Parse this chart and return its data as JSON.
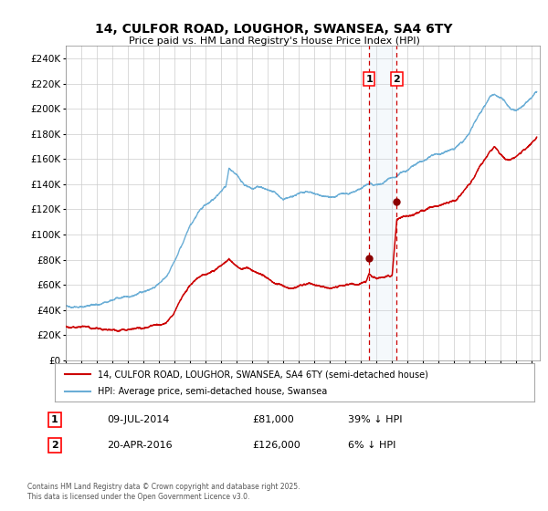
{
  "title": "14, CULFOR ROAD, LOUGHOR, SWANSEA, SA4 6TY",
  "subtitle": "Price paid vs. HM Land Registry's House Price Index (HPI)",
  "legend_line1": "14, CULFOR ROAD, LOUGHOR, SWANSEA, SA4 6TY (semi-detached house)",
  "legend_line2": "HPI: Average price, semi-detached house, Swansea",
  "transaction1_date": "09-JUL-2014",
  "transaction1_price": "£81,000",
  "transaction1_hpi": "39% ↓ HPI",
  "transaction2_date": "20-APR-2016",
  "transaction2_price": "£126,000",
  "transaction2_hpi": "6% ↓ HPI",
  "footnote": "Contains HM Land Registry data © Crown copyright and database right 2025.\nThis data is licensed under the Open Government Licence v3.0.",
  "hpi_color": "#6baed6",
  "price_color": "#cc0000",
  "marker_color": "#8b0000",
  "vline_color": "#cc0000",
  "shade_color": "#cce0f0",
  "grid_color": "#cccccc",
  "background_color": "#ffffff",
  "ylim": [
    0,
    250000
  ],
  "ytick_step": 20000,
  "xlim_start": 1995.0,
  "xlim_end": 2025.5,
  "transaction1_year": 2014.52,
  "transaction2_year": 2016.3,
  "transaction1_price_val": 81000,
  "transaction2_price_val": 126000,
  "hpi_anchors": [
    [
      1995.0,
      43000
    ],
    [
      1995.5,
      43500
    ],
    [
      1996.0,
      43800
    ],
    [
      1996.5,
      44200
    ],
    [
      1997.0,
      44500
    ],
    [
      1997.5,
      45500
    ],
    [
      1998.0,
      47000
    ],
    [
      1998.5,
      49000
    ],
    [
      1999.0,
      51000
    ],
    [
      1999.5,
      53000
    ],
    [
      2000.0,
      55000
    ],
    [
      2000.5,
      58000
    ],
    [
      2001.0,
      62000
    ],
    [
      2001.5,
      67000
    ],
    [
      2002.0,
      76000
    ],
    [
      2002.5,
      90000
    ],
    [
      2003.0,
      103000
    ],
    [
      2003.5,
      112000
    ],
    [
      2004.0,
      118000
    ],
    [
      2004.5,
      122000
    ],
    [
      2005.0,
      128000
    ],
    [
      2005.3,
      133000
    ],
    [
      2005.5,
      147000
    ],
    [
      2006.0,
      140000
    ],
    [
      2006.5,
      130000
    ],
    [
      2007.0,
      128000
    ],
    [
      2007.3,
      130000
    ],
    [
      2007.6,
      128000
    ],
    [
      2008.0,
      125000
    ],
    [
      2008.5,
      122000
    ],
    [
      2009.0,
      118000
    ],
    [
      2009.5,
      120000
    ],
    [
      2010.0,
      122000
    ],
    [
      2010.5,
      124000
    ],
    [
      2011.0,
      123000
    ],
    [
      2011.5,
      121000
    ],
    [
      2012.0,
      120000
    ],
    [
      2012.5,
      121000
    ],
    [
      2013.0,
      122000
    ],
    [
      2013.5,
      124000
    ],
    [
      2014.0,
      126000
    ],
    [
      2014.52,
      130000
    ],
    [
      2015.0,
      128000
    ],
    [
      2015.5,
      130000
    ],
    [
      2016.0,
      132000
    ],
    [
      2016.3,
      134000
    ],
    [
      2016.5,
      136000
    ],
    [
      2017.0,
      140000
    ],
    [
      2017.5,
      144000
    ],
    [
      2018.0,
      148000
    ],
    [
      2018.5,
      152000
    ],
    [
      2019.0,
      155000
    ],
    [
      2019.5,
      157000
    ],
    [
      2020.0,
      158000
    ],
    [
      2020.5,
      163000
    ],
    [
      2021.0,
      170000
    ],
    [
      2021.3,
      178000
    ],
    [
      2021.6,
      185000
    ],
    [
      2022.0,
      192000
    ],
    [
      2022.3,
      198000
    ],
    [
      2022.6,
      200000
    ],
    [
      2023.0,
      196000
    ],
    [
      2023.3,
      192000
    ],
    [
      2023.6,
      188000
    ],
    [
      2024.0,
      189000
    ],
    [
      2024.3,
      192000
    ],
    [
      2024.6,
      196000
    ],
    [
      2025.0,
      200000
    ],
    [
      2025.3,
      204000
    ]
  ],
  "price_anchors": [
    [
      1995.0,
      27000
    ],
    [
      1995.5,
      27200
    ],
    [
      1996.0,
      27500
    ],
    [
      1996.5,
      28000
    ],
    [
      1997.0,
      28200
    ],
    [
      1997.5,
      28500
    ],
    [
      1998.0,
      29000
    ],
    [
      1998.5,
      29500
    ],
    [
      1999.0,
      30000
    ],
    [
      1999.5,
      30500
    ],
    [
      2000.0,
      31000
    ],
    [
      2000.5,
      32500
    ],
    [
      2001.0,
      34000
    ],
    [
      2001.5,
      37000
    ],
    [
      2002.0,
      45000
    ],
    [
      2002.5,
      57000
    ],
    [
      2003.0,
      65000
    ],
    [
      2003.5,
      71000
    ],
    [
      2004.0,
      74000
    ],
    [
      2004.5,
      76000
    ],
    [
      2005.0,
      80000
    ],
    [
      2005.5,
      87000
    ],
    [
      2006.0,
      83000
    ],
    [
      2006.3,
      80000
    ],
    [
      2006.6,
      82000
    ],
    [
      2007.0,
      79000
    ],
    [
      2007.5,
      76000
    ],
    [
      2008.0,
      73000
    ],
    [
      2008.5,
      70000
    ],
    [
      2009.0,
      69000
    ],
    [
      2009.5,
      70000
    ],
    [
      2010.0,
      71000
    ],
    [
      2010.5,
      72000
    ],
    [
      2011.0,
      70000
    ],
    [
      2011.5,
      69000
    ],
    [
      2012.0,
      68000
    ],
    [
      2012.5,
      69000
    ],
    [
      2013.0,
      70000
    ],
    [
      2013.5,
      72000
    ],
    [
      2014.0,
      74000
    ],
    [
      2014.3,
      75000
    ],
    [
      2014.52,
      81000
    ],
    [
      2014.7,
      79000
    ],
    [
      2015.0,
      78000
    ],
    [
      2015.5,
      80000
    ],
    [
      2016.0,
      81000
    ],
    [
      2016.3,
      126000
    ],
    [
      2016.5,
      128000
    ],
    [
      2017.0,
      130000
    ],
    [
      2017.5,
      132000
    ],
    [
      2018.0,
      133000
    ],
    [
      2018.5,
      136000
    ],
    [
      2019.0,
      138000
    ],
    [
      2019.5,
      140000
    ],
    [
      2020.0,
      141000
    ],
    [
      2020.5,
      147000
    ],
    [
      2021.0,
      154000
    ],
    [
      2021.3,
      160000
    ],
    [
      2021.6,
      168000
    ],
    [
      2022.0,
      175000
    ],
    [
      2022.3,
      182000
    ],
    [
      2022.6,
      186000
    ],
    [
      2023.0,
      180000
    ],
    [
      2023.3,
      176000
    ],
    [
      2023.6,
      174000
    ],
    [
      2024.0,
      177000
    ],
    [
      2024.3,
      180000
    ],
    [
      2024.6,
      183000
    ],
    [
      2025.0,
      187000
    ],
    [
      2025.3,
      190000
    ]
  ]
}
